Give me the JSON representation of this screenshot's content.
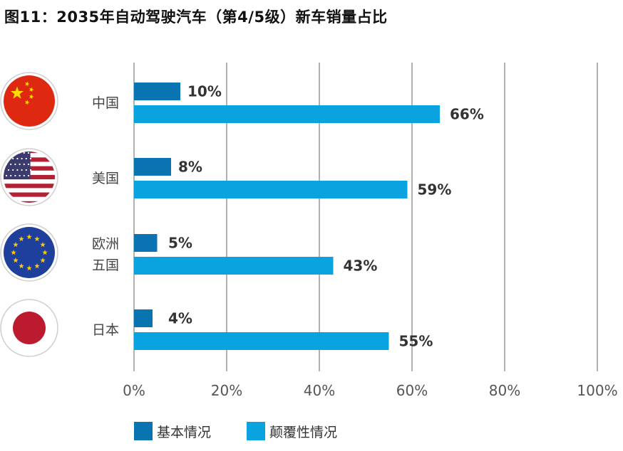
{
  "title": "图11：2035年自动驾驶汽车（第4/5级）新车销量占比",
  "colors": {
    "series_dark": "#0a73b1",
    "series_light": "#0aa3df",
    "grid": "#666666"
  },
  "chart_data": {
    "type": "bar",
    "orientation": "horizontal",
    "categories": [
      "中国",
      "美国",
      "欧洲五国",
      "日本"
    ],
    "category_labels": [
      [
        "中国"
      ],
      [
        "美国"
      ],
      [
        "欧洲",
        "五国"
      ],
      [
        "日本"
      ]
    ],
    "category_flags": [
      "china-flag-icon",
      "usa-flag-icon",
      "eu-flag-icon",
      "japan-flag-icon"
    ],
    "series": [
      {
        "name": "基本情况",
        "values": [
          10,
          8,
          5,
          4
        ],
        "labels": [
          "10%",
          "8%",
          "5%",
          "4%"
        ]
      },
      {
        "name": "颠覆性情况",
        "values": [
          66,
          59,
          43,
          55
        ],
        "labels": [
          "66%",
          "59%",
          "43%",
          "55%"
        ]
      }
    ],
    "xlim": [
      0,
      100
    ],
    "xticks": [
      "0%",
      "20%",
      "40%",
      "60%",
      "80%",
      "100%"
    ],
    "grid": true,
    "legend_position": "bottom"
  }
}
